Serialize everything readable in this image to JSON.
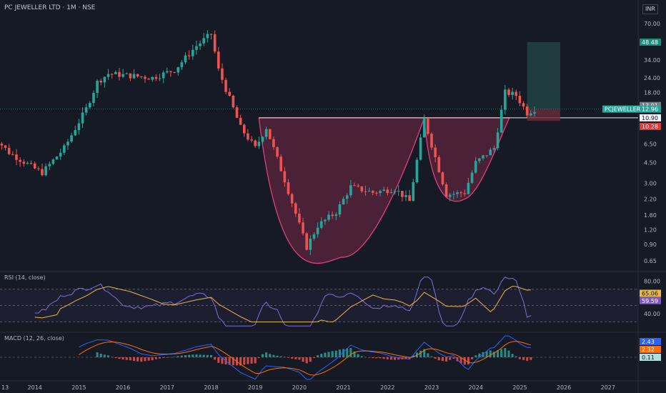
{
  "header": {
    "symbol": "PC JEWELLER LTD",
    "sep1": " · ",
    "interval": "1M",
    "sep2": " · ",
    "exchange": "NSE",
    "currency": "INR"
  },
  "colors": {
    "bg": "#161a25",
    "up": "#26a69a",
    "down": "#ef5350",
    "grid": "#232733",
    "rsi": "#7e6fd8",
    "rsi_ma": "#e6b84a",
    "macd": "#2962ff",
    "signal": "#ff6d00",
    "cup": "#8b2a4e",
    "cup_line": "#e23f7d",
    "target": "#2a5a55"
  },
  "price_axis": {
    "ticks": [
      "70.00",
      "34.00",
      "24.00",
      "18.00",
      "6.50",
      "4.50",
      "3.00",
      "2.20",
      "1.60",
      "1.20",
      "0.90",
      "0.65"
    ]
  },
  "price_labels": {
    "target": "48.48",
    "current": "13.01",
    "last": "12.96",
    "neckline": "10.90",
    "stop": "10.28",
    "symbol": "PCJEWELLER"
  },
  "rsi": {
    "title": "RSI (14, close)",
    "ticks": [
      "80.00",
      "40.00"
    ],
    "value": "65.06",
    "ma": "59.59"
  },
  "macd": {
    "title": "MACD (12, 26, close)",
    "macd": "2.43",
    "signal": "2.32",
    "hist": "0.11"
  },
  "time_axis": [
    "13",
    "2014",
    "2015",
    "2016",
    "2017",
    "2018",
    "2019",
    "2020",
    "2021",
    "2022",
    "2023",
    "2024",
    "2025",
    "2026",
    "2027"
  ],
  "chart_data": {
    "type": "candlestick",
    "title": "PC JEWELLER LTD · 1M · NSE",
    "x_range": [
      "2013-01",
      "2027-12"
    ],
    "y_scale": "log",
    "y_range": [
      0.55,
      90
    ],
    "monthly_close_path": [
      {
        "date": "2013-01",
        "close": 8.0
      },
      {
        "date": "2013-06",
        "close": 5.5
      },
      {
        "date": "2014-01",
        "close": 4.0
      },
      {
        "date": "2014-03",
        "close": 3.7
      },
      {
        "date": "2014-09",
        "close": 6.0
      },
      {
        "date": "2015-03",
        "close": 13
      },
      {
        "date": "2015-06",
        "close": 22
      },
      {
        "date": "2015-09",
        "close": 26
      },
      {
        "date": "2016-03",
        "close": 25
      },
      {
        "date": "2016-09",
        "close": 24
      },
      {
        "date": "2017-03",
        "close": 28
      },
      {
        "date": "2017-09",
        "close": 45
      },
      {
        "date": "2018-01",
        "close": 57
      },
      {
        "date": "2018-03",
        "close": 28
      },
      {
        "date": "2018-09",
        "close": 9.0
      },
      {
        "date": "2019-01",
        "close": 6.0
      },
      {
        "date": "2019-04",
        "close": 9.0
      },
      {
        "date": "2019-09",
        "close": 3.2
      },
      {
        "date": "2020-03",
        "close": 0.85
      },
      {
        "date": "2020-06",
        "close": 1.3
      },
      {
        "date": "2020-11",
        "close": 1.7
      },
      {
        "date": "2021-03",
        "close": 2.8
      },
      {
        "date": "2021-09",
        "close": 2.5
      },
      {
        "date": "2022-03",
        "close": 2.7
      },
      {
        "date": "2022-07",
        "close": 2.1
      },
      {
        "date": "2022-11",
        "close": 10.5
      },
      {
        "date": "2023-02",
        "close": 5.0
      },
      {
        "date": "2023-05",
        "close": 2.4
      },
      {
        "date": "2023-10",
        "close": 2.5
      },
      {
        "date": "2024-01",
        "close": 4.5
      },
      {
        "date": "2024-06",
        "close": 6.0
      },
      {
        "date": "2024-09",
        "close": 18
      },
      {
        "date": "2024-12",
        "close": 17
      },
      {
        "date": "2025-03",
        "close": 12
      },
      {
        "date": "2025-05",
        "close": 12.96
      }
    ],
    "cup_handle": {
      "rim_left_date": "2019-02",
      "rim_right_date": "2022-11",
      "cup_bottom": 0.7,
      "handle_end_date": "2024-09",
      "handle_bottom": 2.2,
      "neckline": 10.9
    },
    "trade_box": {
      "entry": 12.96,
      "target": 48.48,
      "stop": 10.28
    }
  }
}
